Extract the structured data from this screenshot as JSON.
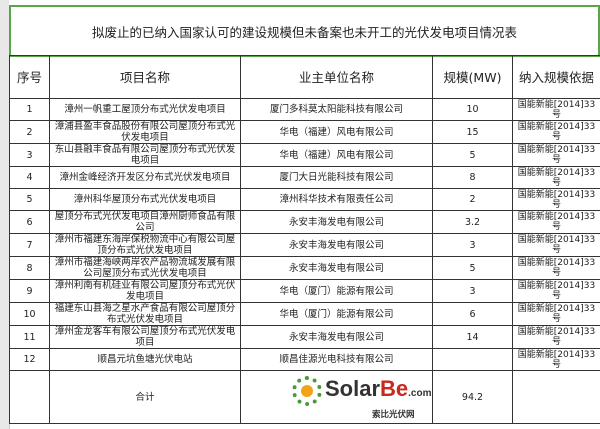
{
  "title": "拟废止的已纳入国家认可的建设规模但未备案也未开工的光伏发电项目情况表",
  "headers": [
    "序号",
    "项目名称",
    "业主单位名称",
    "规模(MW)",
    "纳入规模依据"
  ],
  "rows": [
    {
      "no": "1",
      "project": "漳州一帆重工屋顶分布式光伏发电项目",
      "owner": "厦门多科莫太阳能科技有限公司",
      "scale": "10",
      "basis": "国能新能[2014]33号"
    },
    {
      "no": "2",
      "project": "漳浦县盈丰食品股份有限公司屋顶分布式光伏发电项目",
      "owner": "华电（福建）风电有限公司",
      "scale": "15",
      "basis": "国能新能[2014]33号"
    },
    {
      "no": "3",
      "project": "东山县融丰食品有限公司屋顶分布式光伏发电项目",
      "owner": "华电（福建）风电有限公司",
      "scale": "5",
      "basis": "国能新能[2014]33号"
    },
    {
      "no": "4",
      "project": "漳州金峰经济开发区分布式光伏发电项目",
      "owner": "厦门大日光能科技有限公司",
      "scale": "8",
      "basis": "国能新能[2014]33号"
    },
    {
      "no": "5",
      "project": "漳州科华屋顶分布式光伏发电项目",
      "owner": "漳州科华技术有限责任公司",
      "scale": "2",
      "basis": "国能新能[2014]33号"
    },
    {
      "no": "6",
      "project": "屋顶分布式光伏发电项目漳州厨师食品有限公司",
      "owner": "永安丰海发电有限公司",
      "scale": "3.2",
      "basis": "国能新能[2014]33号"
    },
    {
      "no": "7",
      "project": "漳州市福建东海岸保税物流中心有限公司屋顶分布式光伏发电项目",
      "owner": "永安丰海发电有限公司",
      "scale": "3",
      "basis": "国能新能[2014]33号"
    },
    {
      "no": "8",
      "project": "漳州市福建海峡两岸农产品物流城发展有限公司屋顶分布式光伏发电项目",
      "owner": "永安丰海发电有限公司",
      "scale": "5",
      "basis": "国能新能[2014]33号"
    },
    {
      "no": "9",
      "project": "漳州利南有机硅业有限公司屋顶分布式光伏发电项目",
      "owner": "华电（厦门）能源有限公司",
      "scale": "3",
      "basis": "国能新能[2014]33号"
    },
    {
      "no": "10",
      "project": "福建东山县海之星水产食品有限公司屋顶分布式光伏发电项目",
      "owner": "华电（厦门）能源有限公司",
      "scale": "6",
      "basis": "国能新能[2014]33号"
    },
    {
      "no": "11",
      "project": "漳州金龙客车有限公司屋顶分布式光伏发电项目",
      "owner": "永安丰海发电有限公司",
      "scale": "14",
      "basis": "国能新能[2014]33号"
    },
    {
      "no": "12",
      "project": "顺昌元坑鱼塘光伏电站",
      "owner": "顺昌佳源光电科技有限公司",
      "scale": "",
      "basis": "国能新能[2014]33号"
    }
  ],
  "total": {
    "label": "合计",
    "scale": "94.2"
  },
  "watermark": {
    "brand": "Solar",
    "brand_accent": "Be",
    ".com": ".com",
    "tld": ".com",
    "cn": "索比光伏网"
  },
  "colors": {
    "title_border": "#5aa54a",
    "brand_accent": "#c8281e"
  }
}
